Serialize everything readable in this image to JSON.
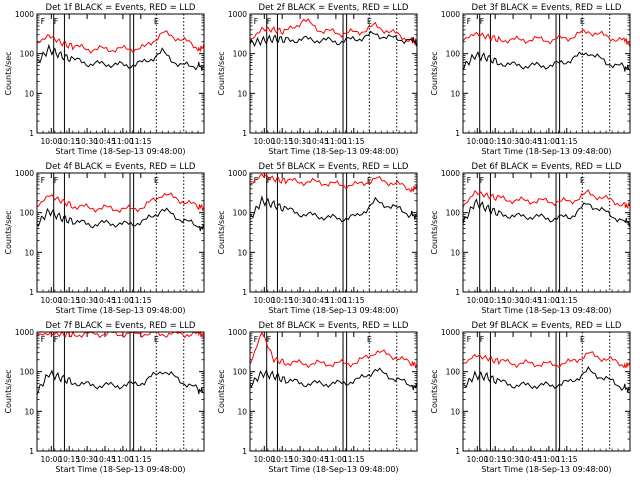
{
  "chart_data": [
    {
      "type": "line",
      "title": "Det 1f BLACK = Events, RED = LLD",
      "xlabel": "Start Time (18-Sep-13 09:48:00)",
      "ylabel": "Counts/sec",
      "yscale": "log",
      "ylim": [
        1,
        1000
      ],
      "x_ticks": [
        "10:00",
        "10:15",
        "10:30",
        "10:45",
        "11:00",
        "11:15"
      ],
      "markers": [
        "F",
        "F",
        "E"
      ],
      "series": [
        {
          "color": "#000000",
          "x": [
            0,
            10,
            20,
            30,
            45,
            60,
            75,
            90,
            105,
            120,
            135,
            140
          ],
          "values": [
            60,
            130,
            90,
            70,
            55,
            55,
            50,
            60,
            110,
            50,
            50,
            45
          ]
        },
        {
          "color": "#ff0000",
          "x": [
            0,
            10,
            20,
            30,
            45,
            60,
            75,
            90,
            105,
            120,
            135,
            140
          ],
          "values": [
            180,
            290,
            190,
            150,
            130,
            130,
            130,
            140,
            330,
            240,
            140,
            130
          ]
        }
      ]
    },
    {
      "type": "line",
      "title": "Det 2f BLACK = Events, RED = LLD",
      "xlabel": "Start Time (18-Sep-13 09:48:00)",
      "ylabel": "Counts/sec",
      "yscale": "log",
      "ylim": [
        1,
        1000
      ],
      "x_ticks": [
        "10:00",
        "10:15",
        "10:30",
        "10:45",
        "11:00",
        "11:15"
      ],
      "markers": [
        "F",
        "F",
        "E"
      ],
      "series": [
        {
          "color": "#000000",
          "x": [
            0,
            10,
            20,
            30,
            45,
            60,
            75,
            90,
            105,
            120,
            135,
            140
          ],
          "values": [
            180,
            210,
            240,
            220,
            230,
            220,
            200,
            240,
            310,
            240,
            220,
            190
          ]
        },
        {
          "color": "#ff0000",
          "x": [
            0,
            10,
            20,
            30,
            45,
            60,
            75,
            90,
            105,
            120,
            135,
            140
          ],
          "values": [
            210,
            420,
            400,
            350,
            700,
            380,
            330,
            340,
            500,
            330,
            220,
            200
          ]
        }
      ]
    },
    {
      "type": "line",
      "title": "Det 3f BLACK = Events, RED = LLD",
      "xlabel": "Start Time (18-Sep-13 09:48:00)",
      "ylabel": "Counts/sec",
      "yscale": "log",
      "ylim": [
        1,
        1000
      ],
      "x_ticks": [
        "10:00",
        "10:15",
        "10:30",
        "10:45",
        "11:00",
        "11:15"
      ],
      "markers": [
        "F",
        "F",
        "E"
      ],
      "series": [
        {
          "color": "#000000",
          "x": [
            0,
            10,
            20,
            30,
            45,
            60,
            75,
            90,
            105,
            120,
            135,
            140
          ],
          "values": [
            45,
            90,
            80,
            60,
            50,
            50,
            50,
            70,
            110,
            60,
            45,
            40
          ]
        },
        {
          "color": "#ff0000",
          "x": [
            0,
            10,
            20,
            30,
            45,
            60,
            75,
            90,
            105,
            120,
            135,
            140
          ],
          "values": [
            220,
            320,
            270,
            230,
            220,
            230,
            220,
            260,
            370,
            270,
            210,
            190
          ]
        }
      ]
    },
    {
      "type": "line",
      "title": "Det 4f BLACK = Events, RED = LLD",
      "xlabel": "Start Time (18-Sep-13 09:48:00)",
      "ylabel": "Counts/sec",
      "yscale": "log",
      "ylim": [
        1,
        1000
      ],
      "x_ticks": [
        "10:00",
        "10:15",
        "10:30",
        "10:45",
        "11:00",
        "11:15"
      ],
      "markers": [
        "F",
        "F",
        "E"
      ],
      "series": [
        {
          "color": "#000000",
          "x": [
            0,
            10,
            20,
            30,
            45,
            60,
            75,
            90,
            105,
            120,
            135,
            140
          ],
          "values": [
            50,
            110,
            75,
            60,
            50,
            55,
            50,
            60,
            120,
            70,
            45,
            40
          ]
        },
        {
          "color": "#ff0000",
          "x": [
            0,
            10,
            20,
            30,
            45,
            60,
            75,
            90,
            105,
            120,
            135,
            140
          ],
          "values": [
            140,
            280,
            200,
            150,
            130,
            130,
            120,
            140,
            300,
            210,
            140,
            130
          ]
        }
      ]
    },
    {
      "type": "line",
      "title": "Det 5f BLACK = Events, RED = LLD",
      "xlabel": "Start Time (18-Sep-13 09:48:00)",
      "ylabel": "Counts/sec",
      "yscale": "log",
      "ylim": [
        1,
        1000
      ],
      "x_ticks": [
        "10:00",
        "10:15",
        "10:30",
        "10:45",
        "11:00",
        "11:15"
      ],
      "markers": [
        "F",
        "F",
        "E"
      ],
      "series": [
        {
          "color": "#000000",
          "x": [
            0,
            10,
            20,
            30,
            45,
            60,
            75,
            90,
            105,
            120,
            135,
            140
          ],
          "values": [
            70,
            200,
            160,
            120,
            90,
            80,
            70,
            80,
            190,
            140,
            90,
            80
          ]
        },
        {
          "color": "#ff0000",
          "x": [
            0,
            10,
            20,
            30,
            45,
            60,
            75,
            90,
            105,
            120,
            135,
            140
          ],
          "values": [
            500,
            900,
            700,
            620,
            600,
            580,
            500,
            500,
            700,
            560,
            400,
            400
          ]
        }
      ]
    },
    {
      "type": "line",
      "title": "Det 6f BLACK = Events, RED = LLD",
      "xlabel": "Start Time (18-Sep-13 09:48:00)",
      "ylabel": "Counts/sec",
      "yscale": "log",
      "ylim": [
        1,
        1000
      ],
      "x_ticks": [
        "10:00",
        "10:15",
        "10:30",
        "10:45",
        "11:00",
        "11:15"
      ],
      "markers": [
        "F",
        "F",
        "E"
      ],
      "series": [
        {
          "color": "#000000",
          "x": [
            0,
            10,
            20,
            30,
            45,
            60,
            75,
            90,
            105,
            120,
            135,
            140
          ],
          "values": [
            55,
            180,
            130,
            95,
            80,
            80,
            70,
            80,
            170,
            100,
            60,
            55
          ]
        },
        {
          "color": "#ff0000",
          "x": [
            0,
            10,
            20,
            30,
            45,
            60,
            75,
            90,
            105,
            120,
            135,
            140
          ],
          "values": [
            140,
            330,
            270,
            230,
            200,
            200,
            190,
            190,
            310,
            220,
            160,
            150
          ]
        }
      ]
    },
    {
      "type": "line",
      "title": "Det 7f BLACK = Events, RED = LLD",
      "xlabel": "Start Time (18-Sep-13 09:48:00)",
      "ylabel": "Counts/sec",
      "yscale": "log",
      "ylim": [
        1,
        1000
      ],
      "x_ticks": [
        "10:00",
        "10:15",
        "10:30",
        "10:45",
        "11:00",
        "11:15"
      ],
      "markers": [
        "F",
        "F",
        "E"
      ],
      "series": [
        {
          "color": "#000000",
          "x": [
            0,
            10,
            20,
            30,
            45,
            60,
            75,
            90,
            105,
            120,
            135,
            140
          ],
          "values": [
            30,
            90,
            70,
            55,
            45,
            45,
            45,
            55,
            110,
            60,
            35,
            30
          ]
        },
        {
          "color": "#ff0000",
          "x": [
            0,
            10,
            20,
            30,
            45,
            60,
            75,
            90,
            105,
            120,
            135,
            140
          ],
          "values": [
            850,
            900,
            880,
            880,
            900,
            900,
            900,
            920,
            900,
            900,
            880,
            870
          ]
        }
      ]
    },
    {
      "type": "line",
      "title": "Det 8f BLACK = Events, RED = LLD",
      "xlabel": "Start Time (18-Sep-13 09:48:00)",
      "ylabel": "Counts/sec",
      "yscale": "log",
      "ylim": [
        1,
        1000
      ],
      "x_ticks": [
        "10:00",
        "10:15",
        "10:30",
        "10:45",
        "11:00",
        "11:15"
      ],
      "markers": [
        "F",
        "F",
        "E"
      ],
      "series": [
        {
          "color": "#000000",
          "x": [
            0,
            10,
            20,
            30,
            45,
            60,
            75,
            90,
            105,
            120,
            135,
            140
          ],
          "values": [
            45,
            90,
            80,
            60,
            50,
            50,
            50,
            60,
            110,
            70,
            45,
            40
          ]
        },
        {
          "color": "#ff0000",
          "x": [
            0,
            10,
            20,
            30,
            45,
            60,
            75,
            90,
            105,
            120,
            135,
            140
          ],
          "values": [
            150,
            1000,
            200,
            170,
            160,
            160,
            160,
            170,
            320,
            250,
            160,
            140
          ]
        }
      ]
    },
    {
      "type": "line",
      "title": "Det 9f BLACK = Events, RED = LLD",
      "xlabel": "Start Time (18-Sep-13 09:48:00)",
      "ylabel": "Counts/sec",
      "yscale": "log",
      "ylim": [
        1,
        1000
      ],
      "x_ticks": [
        "10:00",
        "10:15",
        "10:30",
        "10:45",
        "11:00",
        "11:15"
      ],
      "markers": [
        "F",
        "F",
        "E"
      ],
      "series": [
        {
          "color": "#000000",
          "x": [
            0,
            10,
            20,
            30,
            45,
            60,
            75,
            90,
            105,
            120,
            135,
            140
          ],
          "values": [
            40,
            80,
            75,
            55,
            45,
            45,
            45,
            55,
            105,
            65,
            40,
            35
          ]
        },
        {
          "color": "#ff0000",
          "x": [
            0,
            10,
            20,
            30,
            45,
            60,
            75,
            90,
            105,
            120,
            135,
            140
          ],
          "values": [
            150,
            260,
            220,
            180,
            160,
            160,
            150,
            170,
            280,
            210,
            150,
            140
          ]
        }
      ]
    }
  ]
}
